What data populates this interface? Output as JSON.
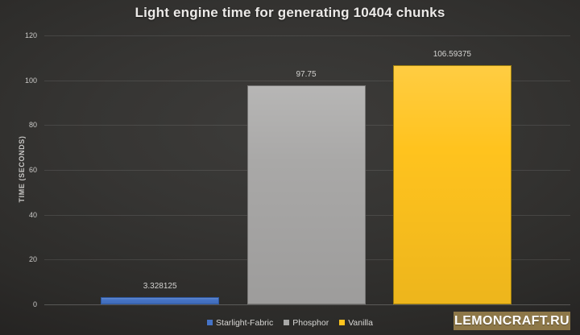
{
  "chart_data": {
    "type": "bar",
    "title": "Light engine time for generating 10404 chunks",
    "ylabel": "TIME (SECONDS)",
    "xlabel": "",
    "categories": [
      "Starlight-Fabric",
      "Phosphor",
      "Vanilla"
    ],
    "values": [
      3.328125,
      97.75,
      106.59375
    ],
    "data_labels": [
      "3.328125",
      "97.75",
      "106.59375"
    ],
    "colors": [
      "#4573c6",
      "#a9a8a7",
      "#ffc31e"
    ],
    "border_colors": [
      "#2d569d",
      "#767574",
      "#9c7e10"
    ],
    "ylim": [
      0,
      120
    ],
    "yticks": [
      0,
      20,
      40,
      60,
      80,
      100,
      120
    ],
    "grid": true,
    "legend_position": "bottom"
  },
  "watermark": {
    "text": "LEMONCRAFT.RU",
    "bg_color": "#8d7748"
  }
}
